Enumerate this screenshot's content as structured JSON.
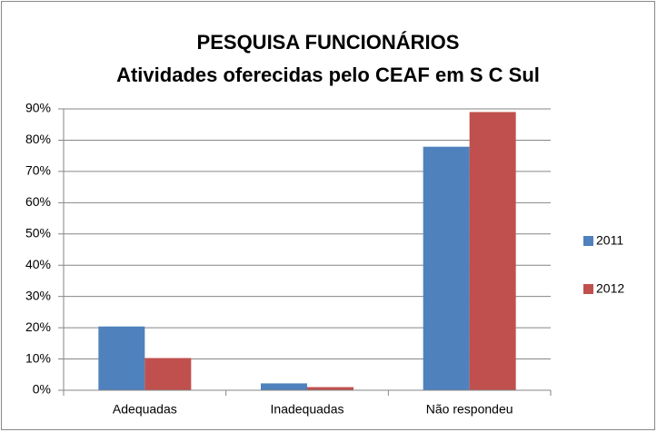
{
  "chart_data": {
    "type": "bar",
    "title": [
      "PESQUISA FUNCIONÁRIOS",
      "Atividades oferecidas pelo CEAF em S C Sul"
    ],
    "categories": [
      "Adequadas",
      "Inadequadas",
      "Não respondeu"
    ],
    "series": [
      {
        "name": "2011",
        "color": "#4f81bd",
        "values": [
          20.4,
          2.2,
          77.9
        ]
      },
      {
        "name": "2012",
        "color": "#c0504d",
        "values": [
          10.3,
          1.0,
          89.0
        ]
      }
    ],
    "ylim": [
      0,
      90
    ],
    "yticks": [
      {
        "value": 0,
        "label": "0%"
      },
      {
        "value": 10,
        "label": "10%"
      },
      {
        "value": 20,
        "label": "20%"
      },
      {
        "value": 30,
        "label": "30%"
      },
      {
        "value": 40,
        "label": "40%"
      },
      {
        "value": 50,
        "label": "50%"
      },
      {
        "value": 60,
        "label": "60%"
      },
      {
        "value": 70,
        "label": "70%"
      },
      {
        "value": 80,
        "label": "80%"
      },
      {
        "value": 90,
        "label": "90%"
      }
    ],
    "grid": true,
    "legend": "right"
  }
}
